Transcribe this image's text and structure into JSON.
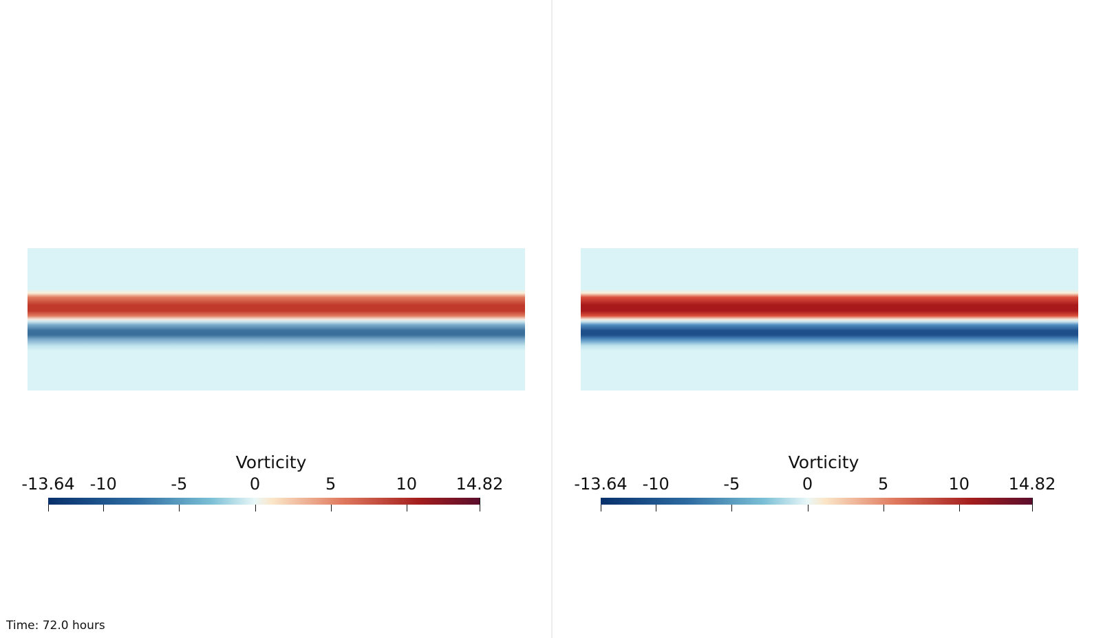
{
  "time_label": "Time: 72.0 hours",
  "views": [
    {
      "id": "left",
      "colorbar": {
        "title": "Vorticity",
        "range": [
          -13.64,
          14.82
        ],
        "ticks": [
          "-13.64",
          "-10",
          "-5",
          "0",
          "5",
          "10",
          "14.82"
        ]
      },
      "field_intensity": 0.75
    },
    {
      "id": "right",
      "colorbar": {
        "title": "Vorticity",
        "range": [
          -13.64,
          14.82
        ],
        "ticks": [
          "-13.64",
          "-10",
          "-5",
          "0",
          "5",
          "10",
          "14.82"
        ]
      },
      "field_intensity": 1.0
    }
  ],
  "colors": {
    "background_field": "#d9f3f7",
    "colormap": [
      "#08306b",
      "#2c6aa0",
      "#7cc0d6",
      "#e9f7f8",
      "#fbe6c8",
      "#e07a5f",
      "#a31d1d",
      "#5b0e2d"
    ]
  }
}
